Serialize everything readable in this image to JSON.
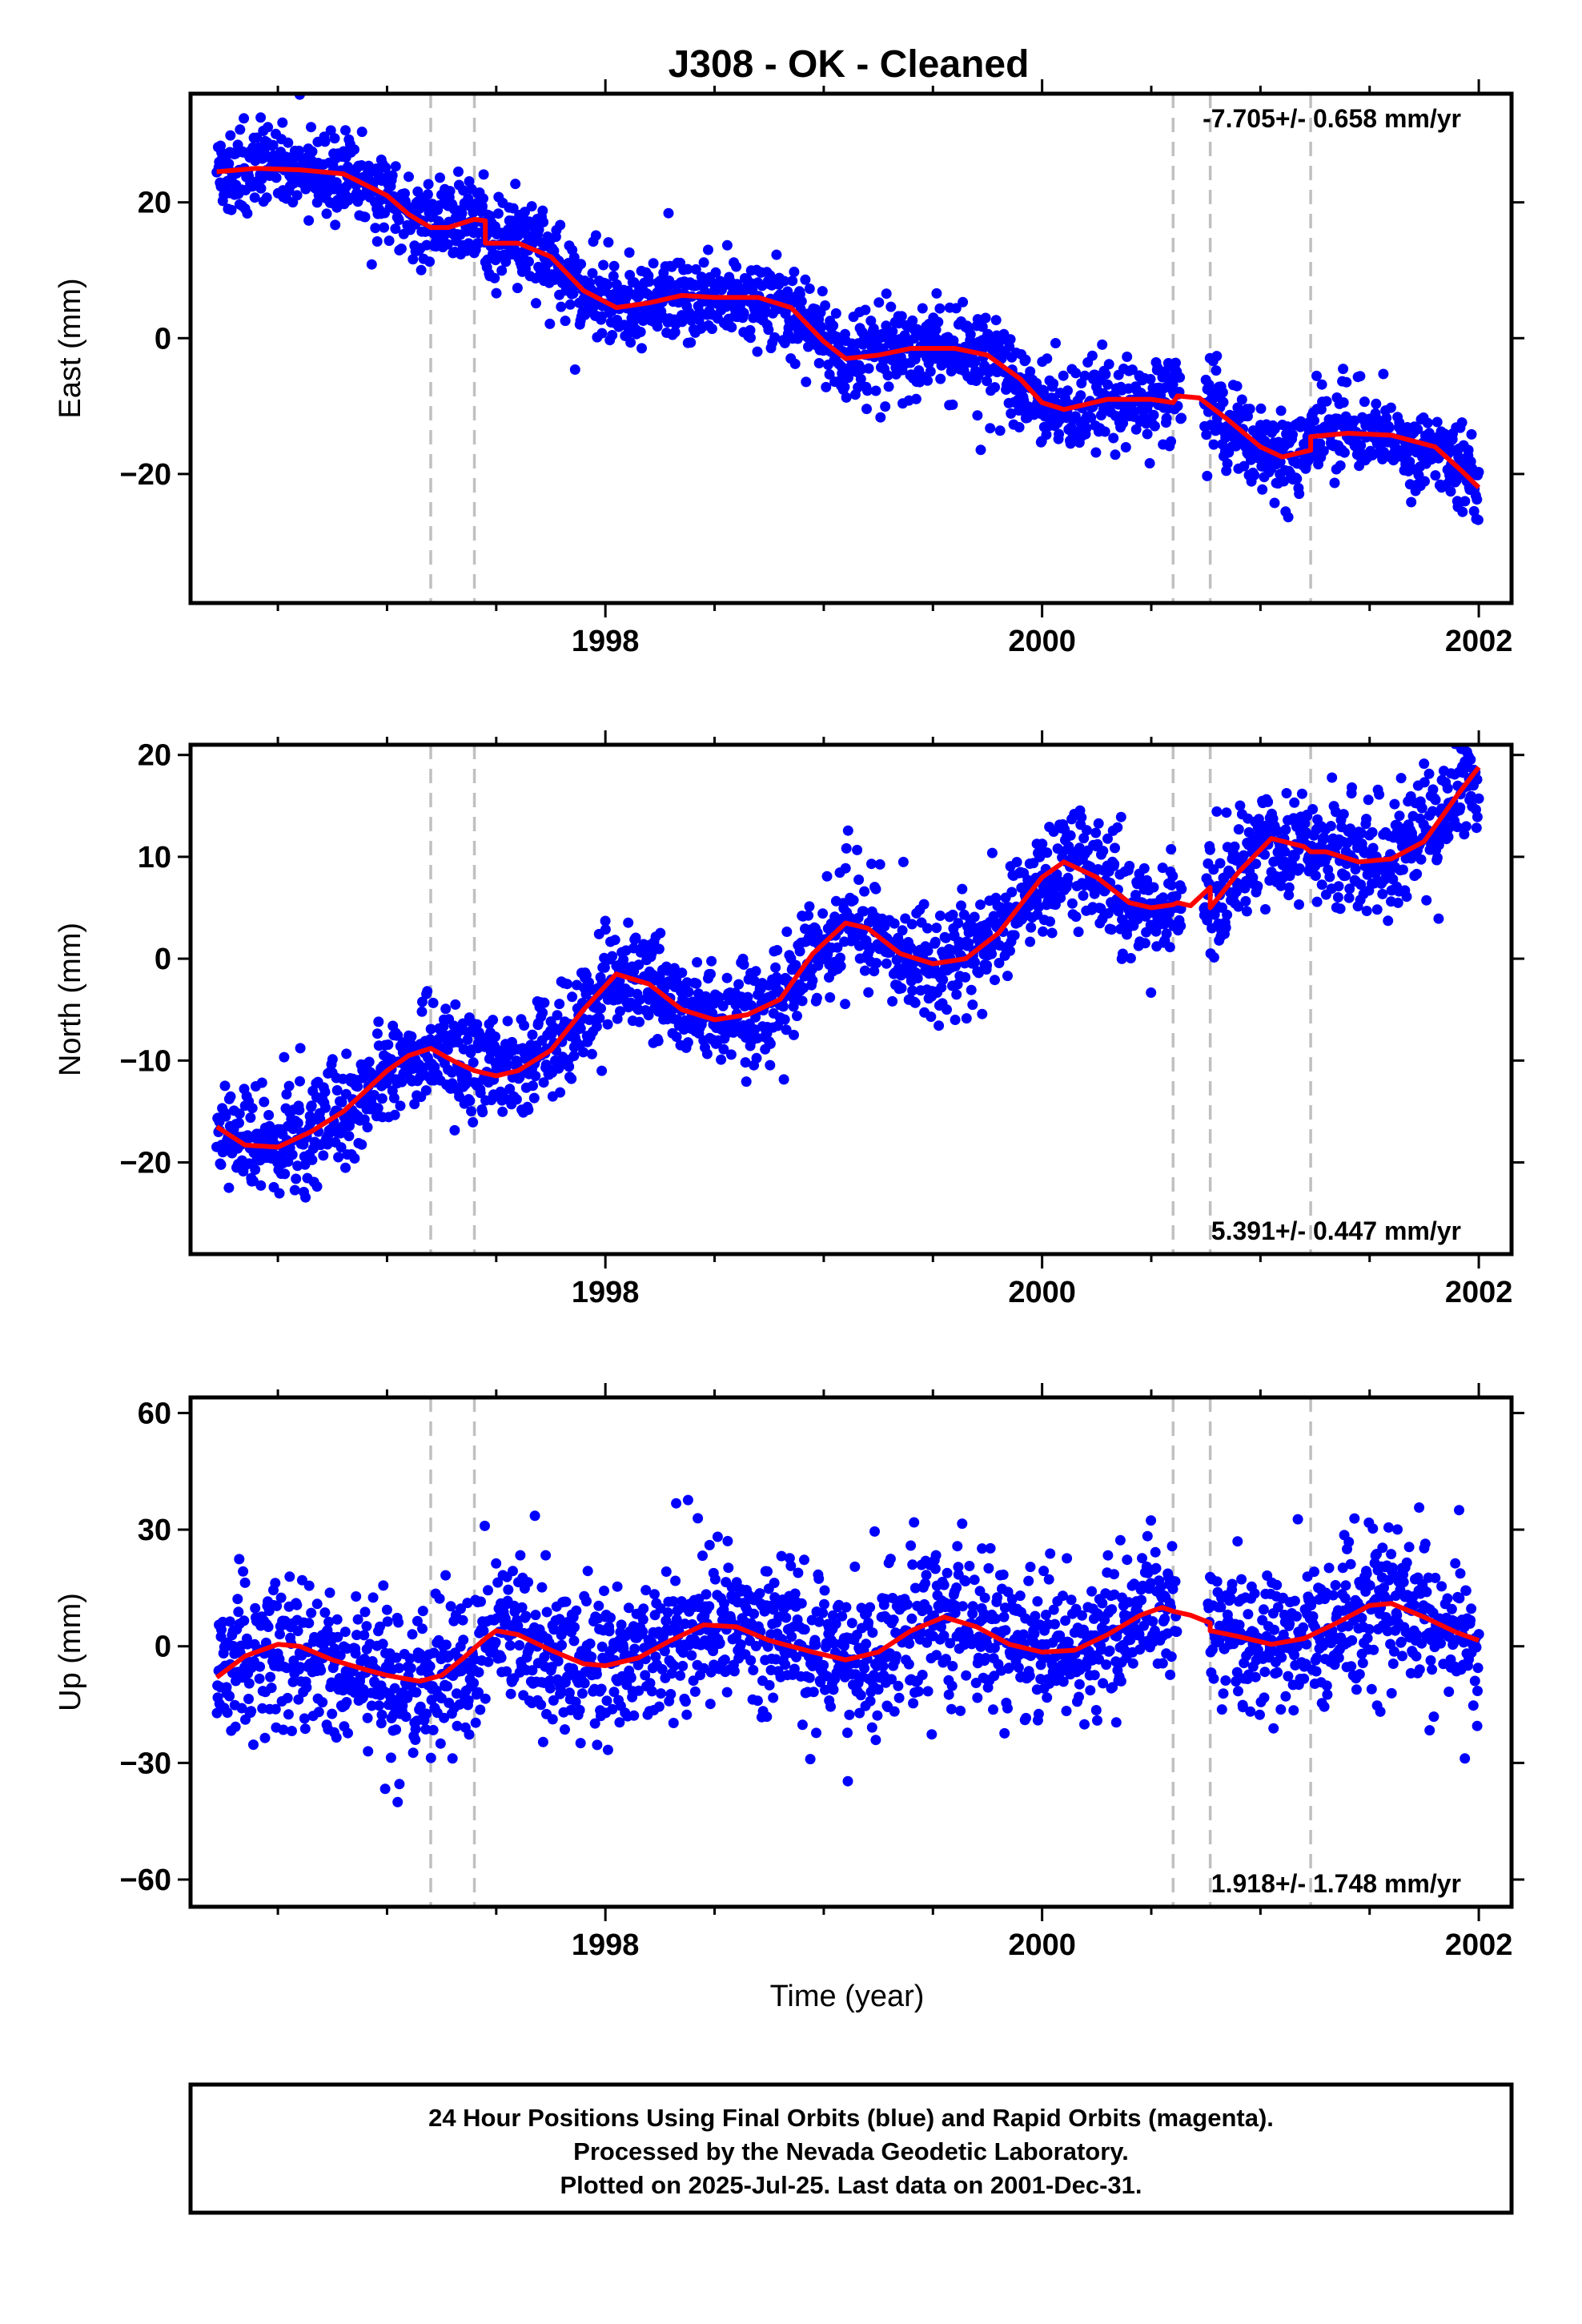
{
  "title": "J308  - OK - Cleaned",
  "xlabel": "Time (year)",
  "footer": {
    "line1": "24 Hour Positions Using Final Orbits (blue) and Rapid Orbits (magenta).",
    "line2": "Processed by the Nevada Geodetic Laboratory.",
    "line3": "Plotted on 2025-Jul-25. Last data on 2001-Dec-31."
  },
  "colors": {
    "points": "#0000ff",
    "model": "#ff0000",
    "breaks": "#c0c0c0",
    "frame": "#000000"
  },
  "chart_data": [
    {
      "type": "scatter",
      "ylabel": "East (mm)",
      "rate_text": "-7.705+/- 0.658 mm/yr",
      "rate_position": "top-right",
      "xlim": [
        1996.1,
        2002.15
      ],
      "ylim": [
        -39,
        36
      ],
      "x_ticks": [
        1998,
        2000,
        2002
      ],
      "y_ticks": [
        -20,
        0,
        20
      ],
      "grid": false,
      "breaks": [
        1997.2,
        1997.4,
        2000.6,
        2000.77,
        2001.23
      ],
      "model": [
        [
          1996.22,
          24.5
        ],
        [
          1996.4,
          25.0
        ],
        [
          1996.6,
          24.8
        ],
        [
          1996.8,
          24.2
        ],
        [
          1997.0,
          21.0
        ],
        [
          1997.1,
          18.2
        ],
        [
          1997.2,
          16.3
        ],
        [
          1997.28,
          16.3
        ],
        [
          1997.4,
          17.5
        ],
        [
          1997.45,
          17.3
        ],
        [
          1997.45,
          14.0
        ],
        [
          1997.6,
          14.0
        ],
        [
          1997.75,
          12.0
        ],
        [
          1997.9,
          7.0
        ],
        [
          1998.05,
          4.5
        ],
        [
          1998.2,
          5.2
        ],
        [
          1998.35,
          6.3
        ],
        [
          1998.5,
          6.0
        ],
        [
          1998.7,
          6.0
        ],
        [
          1998.85,
          4.5
        ],
        [
          1999.0,
          -0.5
        ],
        [
          1999.1,
          -3.0
        ],
        [
          1999.25,
          -2.5
        ],
        [
          1999.4,
          -1.5
        ],
        [
          1999.6,
          -1.5
        ],
        [
          1999.75,
          -2.5
        ],
        [
          1999.9,
          -6.0
        ],
        [
          2000.0,
          -9.5
        ],
        [
          2000.1,
          -10.5
        ],
        [
          2000.3,
          -9.0
        ],
        [
          2000.5,
          -9.0
        ],
        [
          2000.6,
          -9.5
        ],
        [
          2000.62,
          -8.5
        ],
        [
          2000.72,
          -8.8
        ],
        [
          2000.85,
          -12.0
        ],
        [
          2001.0,
          -16.0
        ],
        [
          2001.1,
          -17.5
        ],
        [
          2001.23,
          -16.5
        ],
        [
          2001.23,
          -14.5
        ],
        [
          2001.4,
          -14.0
        ],
        [
          2001.6,
          -14.3
        ],
        [
          2001.8,
          -16.0
        ],
        [
          2001.92,
          -19.5
        ],
        [
          2002.0,
          -22.0
        ]
      ],
      "point_scatter": 3.0,
      "outlier_fraction": 0.05
    },
    {
      "type": "scatter",
      "ylabel": "North (mm)",
      "rate_text": "5.391+/- 0.447 mm/yr",
      "rate_position": "bottom-right",
      "xlim": [
        1996.1,
        2002.15
      ],
      "ylim": [
        -29,
        21
      ],
      "x_ticks": [
        1998,
        2000,
        2002
      ],
      "y_ticks": [
        -20,
        -10,
        0,
        10,
        20
      ],
      "grid": false,
      "breaks": [
        1997.2,
        1997.4,
        2000.6,
        2000.77,
        2001.23
      ],
      "model": [
        [
          1996.22,
          -16.5
        ],
        [
          1996.35,
          -18.3
        ],
        [
          1996.5,
          -18.5
        ],
        [
          1996.65,
          -17.0
        ],
        [
          1996.8,
          -15.0
        ],
        [
          1997.0,
          -11.0
        ],
        [
          1997.1,
          -9.5
        ],
        [
          1997.2,
          -8.8
        ],
        [
          1997.3,
          -10.0
        ],
        [
          1997.4,
          -11.0
        ],
        [
          1997.5,
          -11.5
        ],
        [
          1997.6,
          -11.0
        ],
        [
          1997.75,
          -9.0
        ],
        [
          1997.9,
          -5.0
        ],
        [
          1998.05,
          -1.5
        ],
        [
          1998.2,
          -2.5
        ],
        [
          1998.35,
          -5.0
        ],
        [
          1998.5,
          -6.0
        ],
        [
          1998.65,
          -5.5
        ],
        [
          1998.8,
          -4.0
        ],
        [
          1998.95,
          0.5
        ],
        [
          1999.1,
          3.5
        ],
        [
          1999.2,
          3.0
        ],
        [
          1999.35,
          0.5
        ],
        [
          1999.5,
          -0.5
        ],
        [
          1999.65,
          0.0
        ],
        [
          1999.8,
          2.5
        ],
        [
          2000.0,
          8.0
        ],
        [
          2000.1,
          9.5
        ],
        [
          2000.25,
          8.0
        ],
        [
          2000.4,
          5.5
        ],
        [
          2000.5,
          5.0
        ],
        [
          2000.6,
          5.3
        ],
        [
          2000.62,
          5.5
        ],
        [
          2000.68,
          5.2
        ],
        [
          2000.77,
          7.0
        ],
        [
          2000.77,
          5.0
        ],
        [
          2000.9,
          8.5
        ],
        [
          2001.05,
          11.8
        ],
        [
          2001.2,
          11.0
        ],
        [
          2001.23,
          10.5
        ],
        [
          2001.3,
          10.5
        ],
        [
          2001.45,
          9.5
        ],
        [
          2001.6,
          9.8
        ],
        [
          2001.75,
          11.5
        ],
        [
          2001.9,
          16.0
        ],
        [
          2002.0,
          18.8
        ]
      ],
      "point_scatter": 2.5,
      "outlier_fraction": 0.04
    },
    {
      "type": "scatter",
      "ylabel": "Up (mm)",
      "rate_text": "1.918+/- 1.748 mm/yr",
      "rate_position": "bottom-right",
      "xlim": [
        1996.1,
        2002.15
      ],
      "ylim": [
        -67,
        64
      ],
      "x_ticks": [
        1998,
        2000,
        2002
      ],
      "y_ticks": [
        -60,
        -30,
        0,
        30,
        60
      ],
      "grid": false,
      "breaks": [
        1997.2,
        1997.4,
        2000.6,
        2000.77,
        2001.23
      ],
      "model": [
        [
          1996.22,
          -8.0
        ],
        [
          1996.35,
          -2.5
        ],
        [
          1996.5,
          0.5
        ],
        [
          1996.6,
          0.0
        ],
        [
          1996.75,
          -3.5
        ],
        [
          1996.9,
          -6.0
        ],
        [
          1997.0,
          -7.5
        ],
        [
          1997.15,
          -9.0
        ],
        [
          1997.25,
          -7.5
        ],
        [
          1997.35,
          -3.0
        ],
        [
          1997.45,
          2.0
        ],
        [
          1997.5,
          4.0
        ],
        [
          1997.6,
          3.0
        ],
        [
          1997.75,
          -1.0
        ],
        [
          1997.9,
          -4.5
        ],
        [
          1998.0,
          -5.0
        ],
        [
          1998.15,
          -3.0
        ],
        [
          1998.3,
          1.5
        ],
        [
          1998.45,
          5.5
        ],
        [
          1998.6,
          5.0
        ],
        [
          1998.75,
          1.5
        ],
        [
          1998.95,
          -1.5
        ],
        [
          1999.1,
          -3.5
        ],
        [
          1999.25,
          -1.5
        ],
        [
          1999.4,
          4.0
        ],
        [
          1999.55,
          7.5
        ],
        [
          1999.7,
          5.0
        ],
        [
          1999.85,
          0.5
        ],
        [
          2000.0,
          -1.5
        ],
        [
          2000.15,
          -1.0
        ],
        [
          2000.3,
          3.0
        ],
        [
          2000.45,
          8.0
        ],
        [
          2000.55,
          10.0
        ],
        [
          2000.6,
          9.0
        ],
        [
          2000.68,
          8.0
        ],
        [
          2000.77,
          6.0
        ],
        [
          2000.77,
          4.0
        ],
        [
          2000.9,
          2.5
        ],
        [
          2001.05,
          0.5
        ],
        [
          2001.2,
          2.0
        ],
        [
          2001.35,
          6.0
        ],
        [
          2001.5,
          10.5
        ],
        [
          2001.6,
          11.0
        ],
        [
          2001.75,
          7.5
        ],
        [
          2001.9,
          3.5
        ],
        [
          2002.0,
          1.5
        ]
      ],
      "point_scatter": 9.0,
      "outlier_fraction": 0.07
    }
  ]
}
